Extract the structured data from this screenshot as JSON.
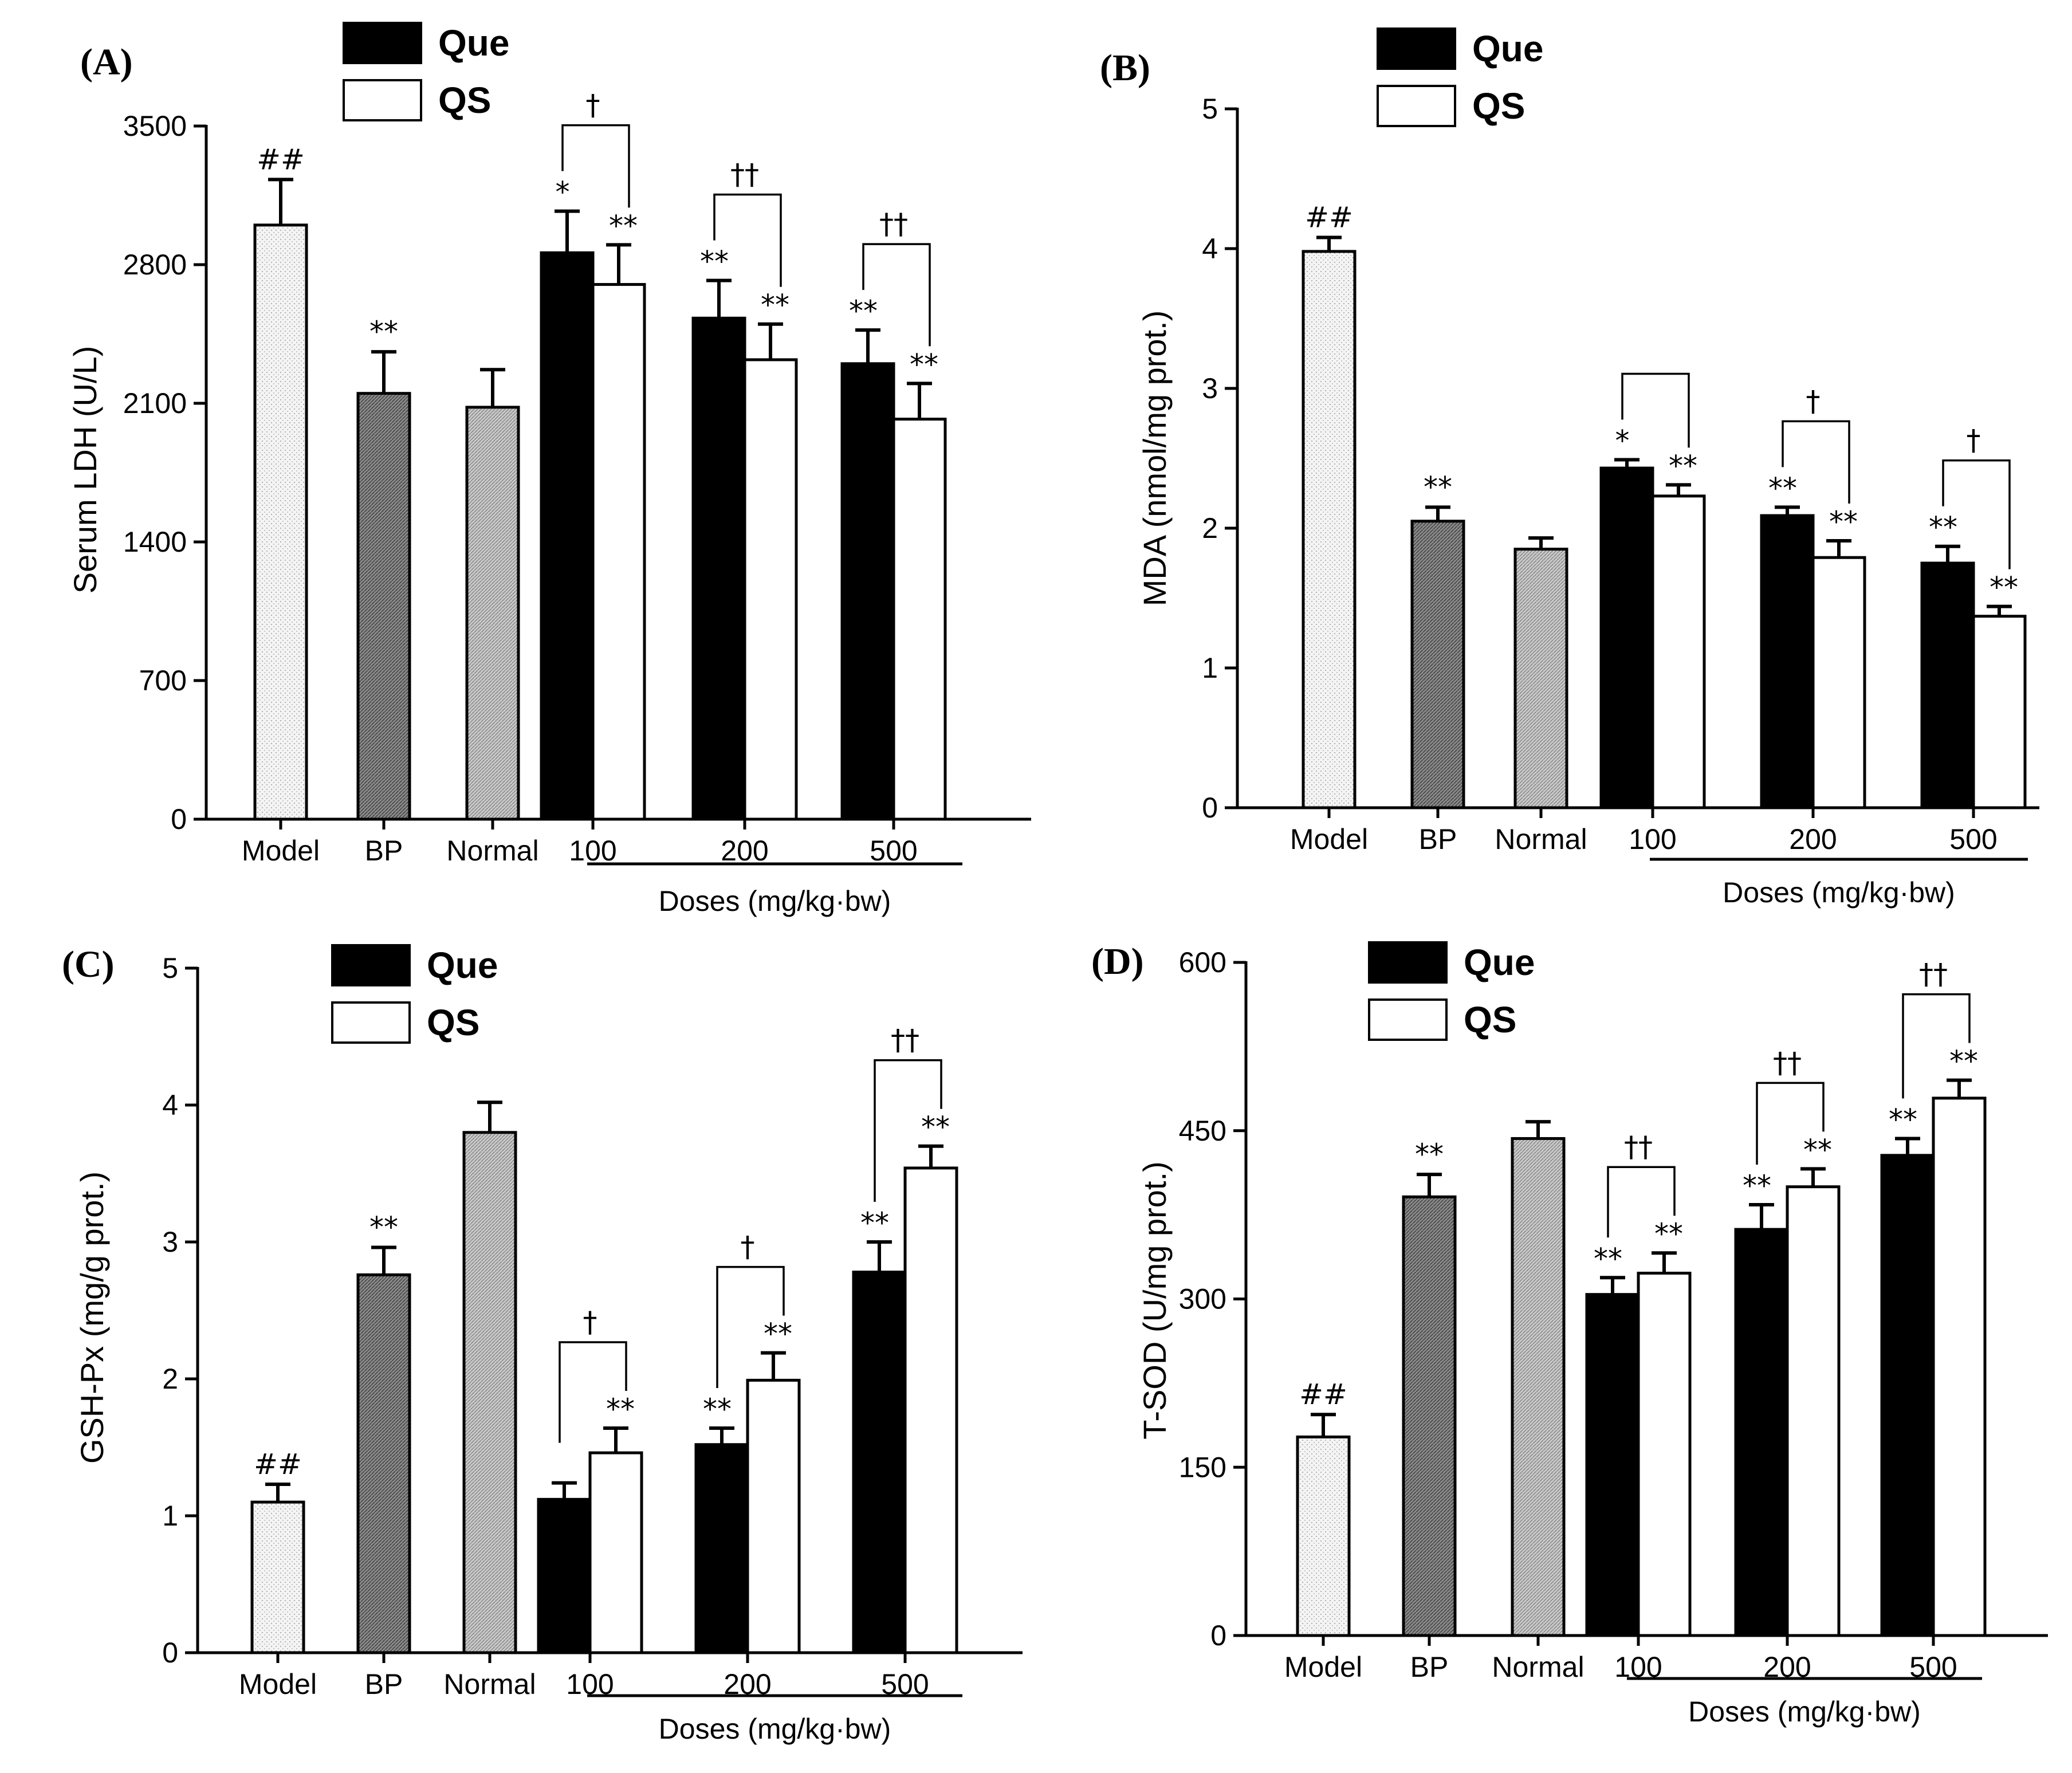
{
  "colors": {
    "que": "#000000",
    "qs": "#ffffff",
    "model": "#f4f4f4",
    "bp": "#7a7a7a",
    "normal": "#bdbdbd"
  },
  "legend": {
    "que": "Que",
    "qs": "QS"
  },
  "dose_label": "Doses (mg/kg·bw)",
  "chart_data": [
    {
      "type": "bar",
      "panel": "(A)",
      "ylabel": "Serum LDH (U/L)",
      "ylim": [
        0,
        3500
      ],
      "yticks": [
        "0",
        "700",
        "1400",
        "2100",
        "2800",
        "3500"
      ],
      "ytick_values": [
        0,
        700,
        1400,
        2100,
        2800,
        3500
      ],
      "control_groups": [
        {
          "label": "Model",
          "value": 3000,
          "err": 230,
          "sig": "##"
        },
        {
          "label": "BP",
          "value": 2150,
          "err": 210,
          "sig": "**"
        },
        {
          "label": "Normal",
          "value": 2080,
          "err": 190,
          "sig": ""
        }
      ],
      "dose_groups": [
        {
          "label": "100",
          "que": 2860,
          "que_err": 210,
          "que_sig": "*",
          "qs": 2700,
          "qs_err": 200,
          "qs_sig": "**",
          "bracket": "†"
        },
        {
          "label": "200",
          "que": 2530,
          "que_err": 190,
          "que_sig": "**",
          "qs": 2320,
          "qs_err": 180,
          "qs_sig": "**",
          "bracket": "††"
        },
        {
          "label": "500",
          "que": 2300,
          "que_err": 170,
          "que_sig": "**",
          "qs": 2020,
          "qs_err": 180,
          "qs_sig": "**",
          "bracket": "††"
        }
      ]
    },
    {
      "type": "bar",
      "panel": "(B)",
      "ylabel": "MDA (nmol/mg prot.)",
      "ylim": [
        0,
        5
      ],
      "yticks": [
        "0",
        "1",
        "2",
        "3",
        "4",
        "5"
      ],
      "ytick_values": [
        0,
        1,
        2,
        3,
        4,
        5
      ],
      "control_groups": [
        {
          "label": "Model",
          "value": 3.98,
          "err": 0.1,
          "sig": "##"
        },
        {
          "label": "BP",
          "value": 2.05,
          "err": 0.1,
          "sig": "**"
        },
        {
          "label": "Normal",
          "value": 1.85,
          "err": 0.08,
          "sig": ""
        }
      ],
      "dose_groups": [
        {
          "label": "100",
          "que": 2.43,
          "que_err": 0.06,
          "que_sig": "*",
          "qs": 2.23,
          "qs_err": 0.08,
          "qs_sig": "**",
          "bracket": ""
        },
        {
          "label": "200",
          "que": 2.09,
          "que_err": 0.06,
          "que_sig": "**",
          "qs": 1.79,
          "qs_err": 0.12,
          "qs_sig": "**",
          "bracket": "†"
        },
        {
          "label": "500",
          "que": 1.75,
          "que_err": 0.12,
          "que_sig": "**",
          "qs": 1.37,
          "qs_err": 0.07,
          "qs_sig": "**",
          "bracket": "†"
        }
      ]
    },
    {
      "type": "bar",
      "panel": "(C)",
      "ylabel": "GSH-Px (mg/g prot.)",
      "ylim": [
        0,
        5
      ],
      "yticks": [
        "0",
        "1",
        "2",
        "3",
        "4",
        "5"
      ],
      "ytick_values": [
        0,
        1,
        2,
        3,
        4,
        5
      ],
      "control_groups": [
        {
          "label": "Model",
          "value": 1.1,
          "err": 0.13,
          "sig": "##"
        },
        {
          "label": "BP",
          "value": 2.76,
          "err": 0.2,
          "sig": "**"
        },
        {
          "label": "Normal",
          "value": 3.8,
          "err": 0.22,
          "sig": ""
        }
      ],
      "dose_groups": [
        {
          "label": "100",
          "que": 1.12,
          "que_err": 0.12,
          "que_sig": "",
          "qs": 1.46,
          "qs_err": 0.18,
          "qs_sig": "**",
          "bracket": "†"
        },
        {
          "label": "200",
          "que": 1.52,
          "que_err": 0.12,
          "que_sig": "**",
          "qs": 1.99,
          "qs_err": 0.2,
          "qs_sig": "**",
          "bracket": "†"
        },
        {
          "label": "500",
          "que": 2.78,
          "que_err": 0.22,
          "que_sig": "**",
          "qs": 3.54,
          "qs_err": 0.16,
          "qs_sig": "**",
          "bracket": "††"
        }
      ]
    },
    {
      "type": "bar",
      "panel": "(D)",
      "ylabel": "T-SOD (U/mg prot.)",
      "ylim": [
        0,
        600
      ],
      "yticks": [
        "0",
        "150",
        "300",
        "450",
        "600"
      ],
      "ytick_values": [
        0,
        150,
        300,
        450,
        600
      ],
      "control_groups": [
        {
          "label": "Model",
          "value": 177,
          "err": 20,
          "sig": "##"
        },
        {
          "label": "BP",
          "value": 391,
          "err": 20,
          "sig": "**"
        },
        {
          "label": "Normal",
          "value": 443,
          "err": 15,
          "sig": ""
        }
      ],
      "dose_groups": [
        {
          "label": "100",
          "que": 304,
          "que_err": 15,
          "que_sig": "**",
          "qs": 323,
          "qs_err": 18,
          "qs_sig": "**",
          "bracket": "††"
        },
        {
          "label": "200",
          "que": 362,
          "que_err": 22,
          "que_sig": "**",
          "qs": 400,
          "qs_err": 16,
          "qs_sig": "**",
          "bracket": "††"
        },
        {
          "label": "500",
          "que": 428,
          "que_err": 15,
          "que_sig": "**",
          "qs": 479,
          "qs_err": 16,
          "qs_sig": "**",
          "bracket": "††"
        }
      ]
    }
  ]
}
